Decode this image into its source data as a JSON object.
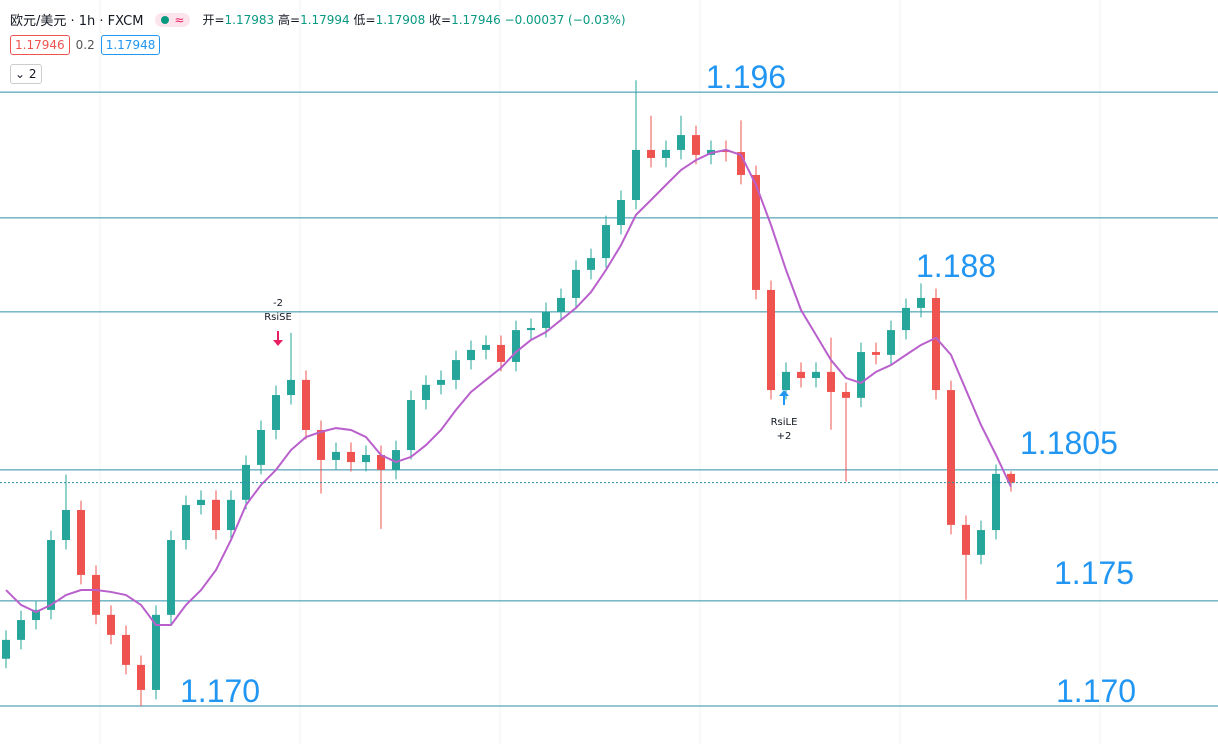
{
  "header": {
    "symbol": "欧元/美元 · 1h · FXCM",
    "ohlc_labels": [
      "开=",
      "高=",
      "低=",
      "收="
    ],
    "change": "−0.00037 (−0.03%)",
    "sell": "1.17946",
    "spread": "0.2",
    "buy": "1.17948",
    "indicator_count": "2"
  },
  "chart_data": {
    "type": "candlestick",
    "open": [
      1.172,
      1.1728,
      1.17364,
      1.17407,
      1.17703,
      1.1783,
      1.17555,
      1.17386,
      1.17301,
      1.17174,
      1.17068,
      1.17386,
      1.17703,
      1.17851,
      1.17873,
      1.17745,
      1.17873,
      1.18021,
      1.18169,
      1.18317,
      1.18381,
      1.18169,
      1.18042,
      1.18076,
      1.18033,
      1.18063,
      1.18,
      1.18084,
      1.18296,
      1.1836,
      1.18381,
      1.18465,
      1.18508,
      1.18529,
      1.18457,
      1.18592,
      1.18601,
      1.18669,
      1.18728,
      1.18847,
      1.18897,
      1.19037,
      1.19143,
      1.19355,
      1.19321,
      1.19355,
      1.19418,
      1.19334,
      1.19355,
      1.19346,
      1.19249,
      1.18762,
      1.18338,
      1.18415,
      1.18389,
      1.18415,
      1.1833,
      1.18305,
      1.18499,
      1.18487,
      1.18592,
      1.18686,
      1.18728,
      1.18338,
      1.17767,
      1.1764,
      1.17745,
      1.17983
    ],
    "high": [
      1.1732,
      1.17404,
      1.17447,
      1.17743,
      1.1798,
      1.1787,
      1.17595,
      1.17426,
      1.17341,
      1.17214,
      1.17426,
      1.17743,
      1.17891,
      1.17913,
      1.17913,
      1.17913,
      1.18061,
      1.18209,
      1.18357,
      1.1858,
      1.18421,
      1.18209,
      1.18116,
      1.18116,
      1.18103,
      1.18103,
      1.18124,
      1.18336,
      1.184,
      1.18421,
      1.18505,
      1.18548,
      1.18569,
      1.18569,
      1.18632,
      1.18641,
      1.18709,
      1.18768,
      1.18887,
      1.18937,
      1.19077,
      1.19183,
      1.1965,
      1.195,
      1.19395,
      1.195,
      1.19458,
      1.19395,
      1.19395,
      1.1948,
      1.19289,
      1.18802,
      1.18455,
      1.18455,
      1.18455,
      1.1856,
      1.1837,
      1.18539,
      1.18539,
      1.18632,
      1.18726,
      1.1879,
      1.18768,
      1.18378,
      1.17807,
      1.17785,
      1.18023,
      1.17994
    ],
    "low": [
      1.1716,
      1.1724,
      1.17324,
      1.17367,
      1.17663,
      1.17515,
      1.17346,
      1.17261,
      1.17134,
      1.17,
      1.17028,
      1.17346,
      1.17663,
      1.17811,
      1.17705,
      1.17705,
      1.17833,
      1.17981,
      1.18129,
      1.18277,
      1.18129,
      1.179,
      1.18002,
      1.17993,
      1.17993,
      1.1775,
      1.1796,
      1.18044,
      1.18256,
      1.1832,
      1.18341,
      1.18425,
      1.18468,
      1.18417,
      1.18417,
      1.18552,
      1.18561,
      1.18629,
      1.18688,
      1.18807,
      1.18857,
      1.18997,
      1.19103,
      1.19281,
      1.19281,
      1.19315,
      1.19294,
      1.19294,
      1.19306,
      1.19209,
      1.18722,
      1.18298,
      1.18298,
      1.18349,
      1.18349,
      1.1817,
      1.1795,
      1.18265,
      1.18447,
      1.18447,
      1.18552,
      1.18646,
      1.18298,
      1.17727,
      1.1745,
      1.176,
      1.17705,
      1.17908
    ],
    "close": [
      1.1728,
      1.17364,
      1.17407,
      1.17703,
      1.1783,
      1.17555,
      1.17386,
      1.17301,
      1.17174,
      1.17068,
      1.17386,
      1.17703,
      1.17851,
      1.17873,
      1.17745,
      1.17873,
      1.18021,
      1.18169,
      1.18317,
      1.18381,
      1.18169,
      1.18042,
      1.18076,
      1.18033,
      1.18063,
      1.18,
      1.18084,
      1.18296,
      1.1836,
      1.18381,
      1.18465,
      1.18508,
      1.18529,
      1.18457,
      1.18592,
      1.18601,
      1.18669,
      1.18728,
      1.18847,
      1.18897,
      1.19037,
      1.19143,
      1.19355,
      1.19321,
      1.19355,
      1.19418,
      1.19334,
      1.19355,
      1.19346,
      1.19249,
      1.18762,
      1.18338,
      1.18415,
      1.18389,
      1.18415,
      1.1833,
      1.18305,
      1.18499,
      1.18487,
      1.18592,
      1.18686,
      1.18728,
      1.18338,
      1.17767,
      1.1764,
      1.17745,
      1.17983,
      1.17946
    ],
    "up_color": "#26a69a",
    "down_color": "#ef5350",
    "ylim": [
      1.1999,
      1.16839
    ],
    "ma": {
      "color": "#b960cc",
      "values": [
        1.17491,
        1.17428,
        1.17398,
        1.17428,
        1.1747,
        1.17491,
        1.17491,
        1.17483,
        1.1747,
        1.17428,
        1.17343,
        1.17343,
        1.17428,
        1.17491,
        1.17576,
        1.17703,
        1.17851,
        1.17936,
        1.18,
        1.18084,
        1.18139,
        1.18161,
        1.18177,
        1.18169,
        1.18139,
        1.18063,
        1.18033,
        1.18055,
        1.18105,
        1.18169,
        1.18254,
        1.1833,
        1.18381,
        1.18432,
        1.18499,
        1.1855,
        1.18584,
        1.18635,
        1.18686,
        1.18753,
        1.18847,
        1.18952,
        1.1908,
        1.19143,
        1.19207,
        1.1927,
        1.19312,
        1.19342,
        1.19355,
        1.19334,
        1.19207,
        1.19037,
        1.18847,
        1.18677,
        1.18571,
        1.18465,
        1.18389,
        1.18368,
        1.18415,
        1.18444,
        1.18487,
        1.18529,
        1.18559,
        1.18487,
        1.18338,
        1.1819,
        1.18063,
        1.17928
      ]
    },
    "levels": {
      "color": "#2b8fa6",
      "values": [
        1.196,
        1.19067,
        1.18669,
        1.18,
        1.17445,
        1.17
      ]
    },
    "annotation_color": "#2196f3",
    "annotations": [
      {
        "text": "1.196",
        "value": 1.196
      },
      {
        "text": "1.188",
        "value": 1.188
      },
      {
        "text": "1.1805",
        "value": 1.1805
      },
      {
        "text": "1.175",
        "value": 1.175
      },
      {
        "text": "1.170",
        "value": 1.17
      },
      {
        "text": "1.170",
        "value": 1.17
      }
    ],
    "signals": [
      {
        "lines": [
          "-2",
          "RsiSE"
        ],
        "color": "#e91e63"
      },
      {
        "lines": [
          "RsiLE",
          "+2"
        ],
        "color": "#2196f3"
      }
    ]
  }
}
